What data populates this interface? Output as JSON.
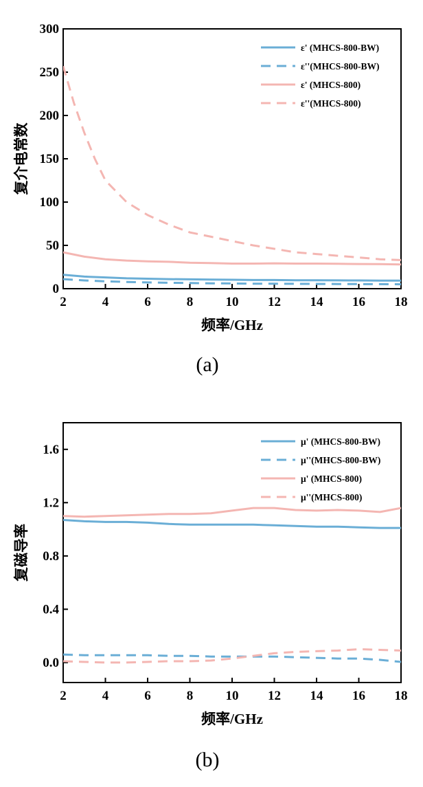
{
  "chart_data": [
    {
      "type": "line",
      "caption": "(a)",
      "xlabel": "频率/GHz",
      "ylabel": "复介电常数",
      "xlim": [
        2,
        18
      ],
      "ylim": [
        0,
        300
      ],
      "xticks": [
        2,
        4,
        6,
        8,
        10,
        12,
        14,
        16,
        18
      ],
      "yticks": [
        0,
        50,
        100,
        150,
        200,
        250,
        300
      ],
      "legend_position": "top-right",
      "series": [
        {
          "name": "ε' (MHCS-800-BW)",
          "color": "#6aaed6",
          "dash": "solid",
          "x": [
            2,
            3,
            4,
            5,
            6,
            7,
            8,
            9,
            10,
            11,
            12,
            13,
            14,
            15,
            16,
            17,
            18
          ],
          "values": [
            16,
            14,
            13,
            12,
            11.5,
            11,
            10.8,
            10.5,
            10.3,
            10,
            10,
            9.8,
            9.7,
            9.6,
            9.5,
            9.4,
            9.3
          ]
        },
        {
          "name": "ε''(MHCS-800-BW)",
          "color": "#6aaed6",
          "dash": "dashed",
          "x": [
            2,
            3,
            4,
            5,
            6,
            7,
            8,
            9,
            10,
            11,
            12,
            13,
            14,
            15,
            16,
            17,
            18
          ],
          "values": [
            11,
            9.5,
            8.5,
            7.8,
            7.2,
            6.8,
            6.5,
            6.2,
            6,
            5.8,
            5.7,
            5.6,
            5.5,
            5.4,
            5.3,
            5.2,
            5.1
          ]
        },
        {
          "name": "ε' (MHCS-800)",
          "color": "#f4b6b2",
          "dash": "solid",
          "x": [
            2,
            3,
            4,
            5,
            6,
            7,
            8,
            9,
            10,
            11,
            12,
            13,
            14,
            15,
            16,
            17,
            18
          ],
          "values": [
            42,
            37,
            34,
            32.5,
            31.5,
            31,
            30,
            29.5,
            29,
            29,
            29.3,
            29,
            29,
            28.7,
            28.5,
            28.3,
            28
          ]
        },
        {
          "name": "ε''(MHCS-800)",
          "color": "#f4b6b2",
          "dash": "dashed",
          "x": [
            2,
            2.5,
            3,
            3.5,
            4,
            5,
            6,
            7,
            8,
            9,
            10,
            11,
            12,
            13,
            14,
            15,
            16,
            17,
            18
          ],
          "values": [
            257,
            215,
            180,
            150,
            125,
            100,
            85,
            74,
            65,
            60,
            55,
            50,
            46,
            42,
            40,
            38,
            36,
            34,
            33
          ]
        }
      ]
    },
    {
      "type": "line",
      "caption": "(b)",
      "xlabel": "频率/GHz",
      "ylabel": "复磁导率",
      "xlim": [
        2,
        18
      ],
      "ylim": [
        -0.15,
        1.8
      ],
      "xticks": [
        2,
        4,
        6,
        8,
        10,
        12,
        14,
        16,
        18
      ],
      "yticks": [
        "0.0",
        "0.4",
        "0.8",
        "1.2",
        "1.6"
      ],
      "legend_position": "top-right",
      "series": [
        {
          "name": "μ' (MHCS-800-BW)",
          "color": "#6aaed6",
          "dash": "solid",
          "x": [
            2,
            3,
            4,
            5,
            6,
            7,
            8,
            9,
            10,
            11,
            12,
            13,
            14,
            15,
            16,
            17,
            18
          ],
          "values": [
            1.07,
            1.06,
            1.055,
            1.055,
            1.05,
            1.04,
            1.035,
            1.035,
            1.035,
            1.035,
            1.03,
            1.025,
            1.02,
            1.02,
            1.015,
            1.01,
            1.01
          ]
        },
        {
          "name": "μ''(MHCS-800-BW)",
          "color": "#6aaed6",
          "dash": "dashed",
          "x": [
            2,
            3,
            4,
            5,
            6,
            7,
            8,
            9,
            10,
            11,
            12,
            13,
            14,
            15,
            16,
            17,
            18
          ],
          "values": [
            0.06,
            0.055,
            0.055,
            0.055,
            0.055,
            0.05,
            0.05,
            0.045,
            0.045,
            0.045,
            0.045,
            0.04,
            0.035,
            0.03,
            0.03,
            0.02,
            0.005
          ]
        },
        {
          "name": "μ' (MHCS-800)",
          "color": "#f4b6b2",
          "dash": "solid",
          "x": [
            2,
            3,
            4,
            5,
            6,
            7,
            8,
            9,
            10,
            11,
            12,
            13,
            14,
            15,
            16,
            17,
            18
          ],
          "values": [
            1.1,
            1.095,
            1.1,
            1.105,
            1.11,
            1.115,
            1.115,
            1.12,
            1.14,
            1.16,
            1.16,
            1.145,
            1.14,
            1.145,
            1.14,
            1.13,
            1.16
          ]
        },
        {
          "name": "μ''(MHCS-800)",
          "color": "#f4b6b2",
          "dash": "dashed",
          "x": [
            2,
            3,
            4,
            5,
            6,
            7,
            8,
            9,
            10,
            11,
            12,
            13,
            14,
            15,
            16,
            17,
            18
          ],
          "values": [
            0.01,
            0.005,
            0.0,
            0.0,
            0.005,
            0.01,
            0.01,
            0.015,
            0.03,
            0.05,
            0.07,
            0.08,
            0.085,
            0.09,
            0.1,
            0.095,
            0.09
          ]
        }
      ]
    }
  ]
}
